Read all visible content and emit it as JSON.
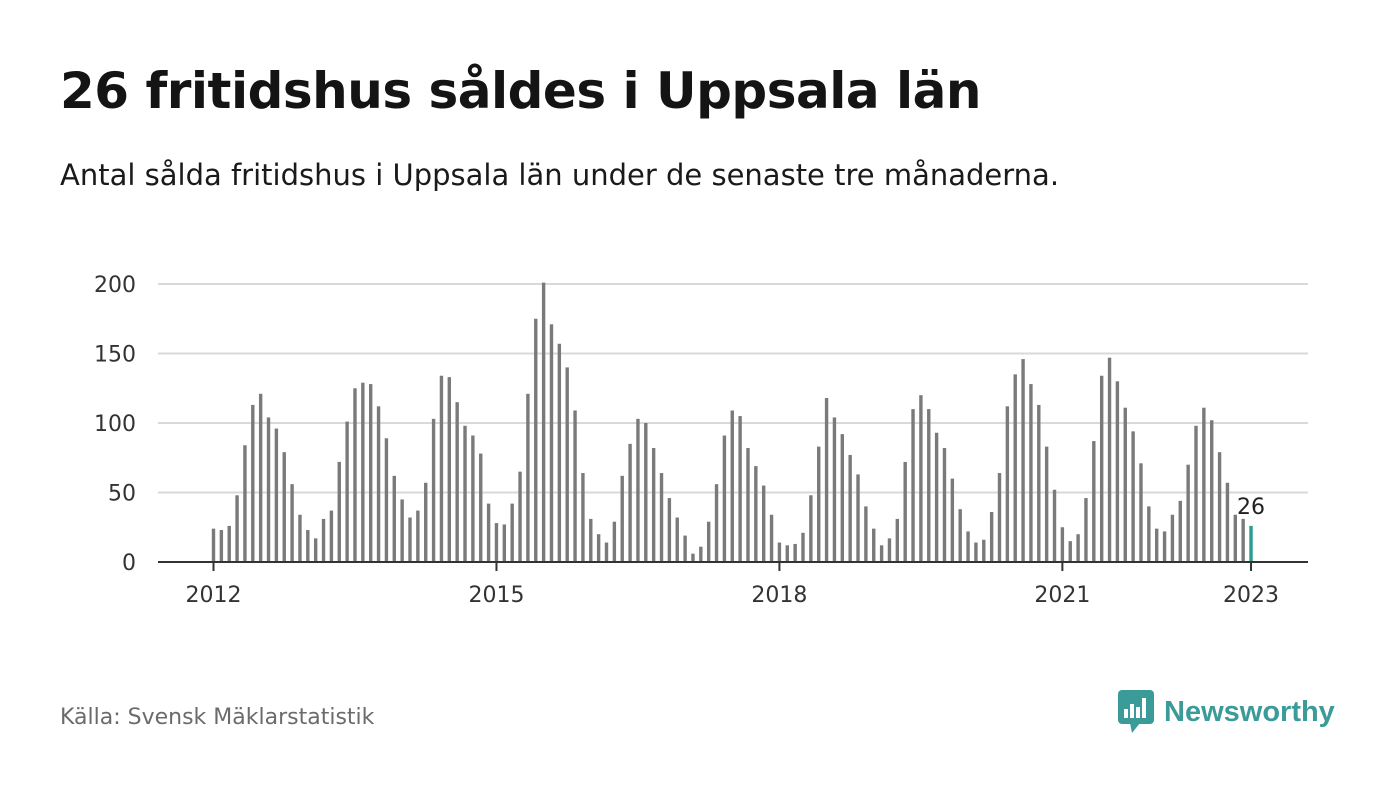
{
  "header": {
    "title": "26 fritidshus såldes i Uppsala län",
    "subtitle": "Antal sålda fritidshus i Uppsala län under de senaste tre månaderna."
  },
  "footer": {
    "source": "Källa: Svensk Mäklarstatistik",
    "brand": "Newsworthy",
    "brand_icon": "bar-chart-speech-bubble-icon"
  },
  "colors": {
    "bar": "#7a7a7a",
    "highlight": "#2a9d8f",
    "grid": "#d9d9d9",
    "axis": "#333333",
    "brand": "#3a9b98"
  },
  "chart_data": {
    "type": "bar",
    "x_start": "2012-01",
    "ylim": [
      0,
      200
    ],
    "yticks": [
      0,
      50,
      100,
      150,
      200
    ],
    "xticks": [
      "2012",
      "2015",
      "2018",
      "2021",
      "2023"
    ],
    "grid": true,
    "highlight_label": "26",
    "values": [
      24,
      23,
      26,
      48,
      84,
      113,
      121,
      104,
      96,
      79,
      56,
      34,
      23,
      17,
      31,
      37,
      72,
      101,
      125,
      129,
      128,
      112,
      89,
      62,
      45,
      32,
      37,
      57,
      103,
      134,
      133,
      115,
      98,
      91,
      78,
      42,
      28,
      27,
      42,
      65,
      121,
      175,
      201,
      171,
      157,
      140,
      109,
      64,
      31,
      20,
      14,
      29,
      62,
      85,
      103,
      100,
      82,
      64,
      46,
      32,
      19,
      6,
      11,
      29,
      56,
      91,
      109,
      105,
      82,
      69,
      55,
      34,
      14,
      12,
      13,
      21,
      48,
      83,
      118,
      104,
      92,
      77,
      63,
      40,
      24,
      12,
      17,
      31,
      72,
      110,
      120,
      110,
      93,
      82,
      60,
      38,
      22,
      14,
      16,
      36,
      64,
      112,
      135,
      146,
      128,
      113,
      83,
      52,
      25,
      15,
      20,
      46,
      87,
      134,
      147,
      130,
      111,
      94,
      71,
      40,
      24,
      22,
      34,
      44,
      70,
      98,
      111,
      102,
      79,
      57,
      34,
      31,
      26
    ]
  }
}
